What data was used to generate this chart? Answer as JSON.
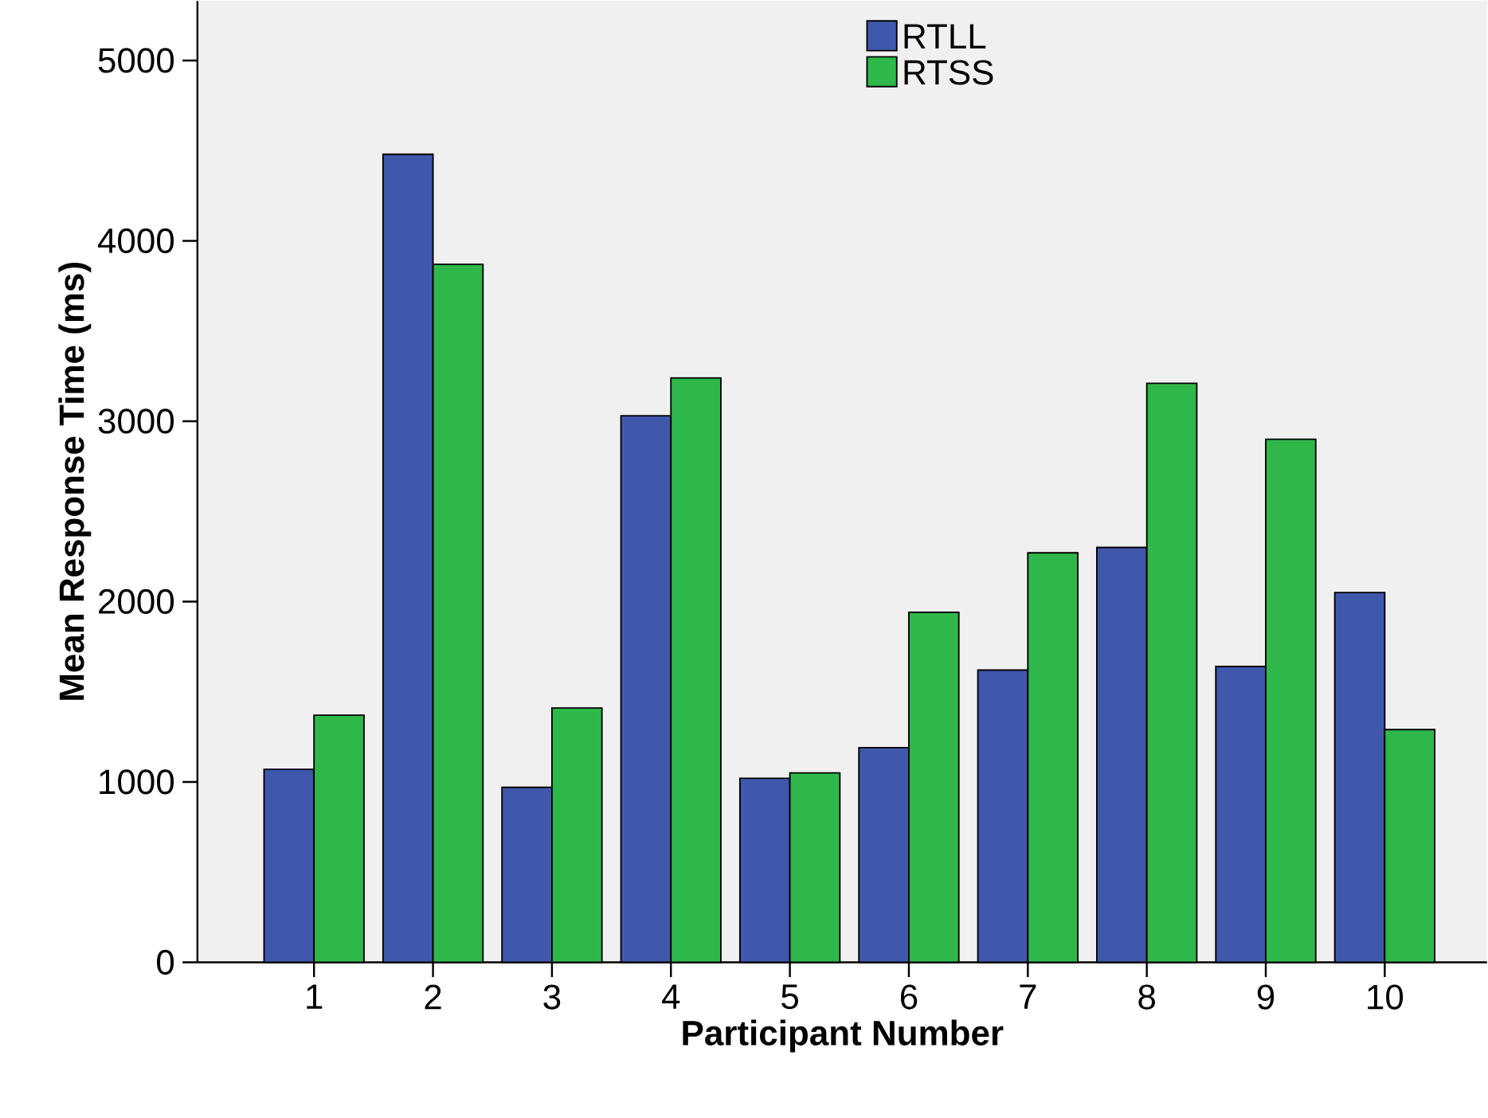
{
  "chart_data": {
    "type": "bar",
    "xlabel": "Participant Number",
    "ylabel": "Mean Response Time (ms)",
    "categories": [
      "1",
      "2",
      "3",
      "4",
      "5",
      "6",
      "7",
      "8",
      "9",
      "10"
    ],
    "series": [
      {
        "name": "RTLL",
        "color": "#3f58ab",
        "values": [
          1070,
          4480,
          970,
          3030,
          1020,
          1190,
          1620,
          2300,
          1640,
          2050
        ]
      },
      {
        "name": "RTSS",
        "color": "#2fb84a",
        "values": [
          1370,
          3870,
          1410,
          3240,
          1050,
          1940,
          2270,
          3210,
          2900,
          1290
        ]
      }
    ],
    "ylim": [
      0,
      5330
    ],
    "yticks": [
      0,
      1000,
      2000,
      3000,
      4000,
      5000
    ],
    "grid": false,
    "legend": "top"
  }
}
